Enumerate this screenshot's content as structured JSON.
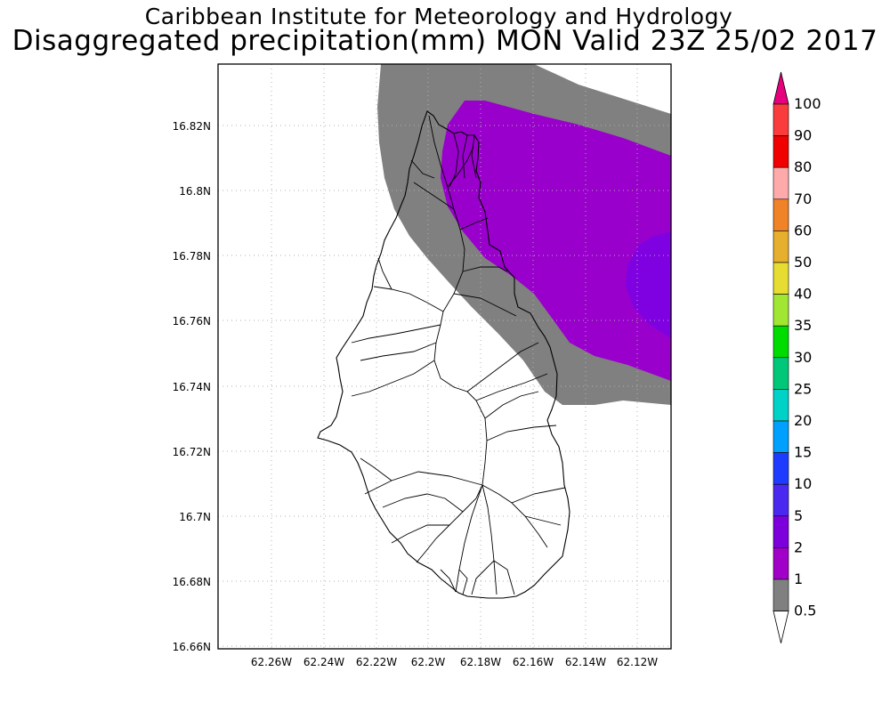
{
  "title_line1": "Caribbean Institute for Meteorology and Hydrology",
  "title_line2": "Disaggregated precipitation(mm) MON Valid 23Z 25/02 2017",
  "map": {
    "lat_ticks": [
      "16.82N",
      "16.8N",
      "16.78N",
      "16.76N",
      "16.74N",
      "16.72N",
      "16.7N",
      "16.68N",
      "16.66N"
    ],
    "lon_ticks": [
      "62.26W",
      "62.24W",
      "62.22W",
      "62.2W",
      "62.18W",
      "62.16W",
      "62.14W",
      "62.12W"
    ],
    "grid": true,
    "precipitation_areas": [
      {
        "class": "0.5-1",
        "color": "#808080"
      },
      {
        "class": "1-2",
        "color": "#9900cc"
      },
      {
        "class": "2-5",
        "color": "#7f00e0"
      }
    ]
  },
  "colorbar": {
    "labels": [
      "100",
      "90",
      "80",
      "70",
      "60",
      "50",
      "40",
      "35",
      "30",
      "25",
      "20",
      "15",
      "10",
      "5",
      "2",
      "1",
      "0.5"
    ],
    "segment_colors": [
      "#fa3c3c",
      "#f00000",
      "#ffaaaa",
      "#f08228",
      "#e6af2d",
      "#e6dc32",
      "#a0e632",
      "#00dc00",
      "#00c878",
      "#00d2c8",
      "#00a0ff",
      "#1e3cff",
      "#4b28f0",
      "#7d00dc",
      "#a000c8",
      "#808080"
    ],
    "top_arrow_color": "#e6007e",
    "bottom_arrow_color": "#ffffff"
  }
}
